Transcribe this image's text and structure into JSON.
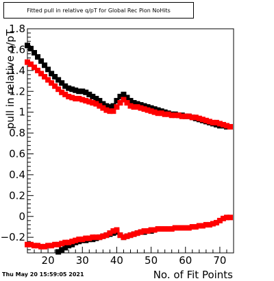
{
  "title": "Fitted pull in relative q/pT for Global Rec Pion NoHits",
  "timestamp": "Thu May 20 15:59:05 2021",
  "chart_data": {
    "type": "scatter",
    "title": "Fitted pull in relative q/pT for Global Rec Pion NoHits",
    "xlabel": "No. of Fit Points",
    "ylabel": "pull in relative q/pT",
    "xlim": [
      14,
      74
    ],
    "ylim": [
      -0.35,
      1.8
    ],
    "x_ticks": [
      20,
      30,
      40,
      50,
      60,
      70
    ],
    "y_ticks": [
      -0.2,
      0,
      0.2,
      0.4,
      0.6,
      0.8,
      1,
      1.2,
      1.4,
      1.6,
      1.8
    ],
    "x_tick_labels": [
      "20",
      "30",
      "40",
      "50",
      "60",
      "70"
    ],
    "y_tick_labels": [
      "−0.2",
      "0",
      "0.2",
      "0.4",
      "0.6",
      "0.8",
      "1",
      "1.2",
      "1.4",
      "1.6",
      "1.8"
    ],
    "grid": false,
    "series": [
      {
        "color": "#000000",
        "x": [
          14,
          15,
          16,
          17,
          18,
          19,
          20,
          21,
          22,
          23,
          24,
          25,
          26,
          27,
          28,
          29,
          30,
          31,
          32,
          33,
          34,
          35,
          36,
          37,
          38,
          39,
          40,
          41,
          42,
          43,
          44,
          45,
          46,
          47,
          48,
          49,
          50,
          51,
          52,
          53,
          54,
          55,
          56,
          57,
          58,
          59,
          60,
          61,
          62,
          63,
          64,
          65,
          66,
          67,
          68,
          69,
          70,
          71,
          72,
          73
        ],
        "y": [
          1.64,
          1.61,
          1.57,
          1.53,
          1.49,
          1.45,
          1.41,
          1.37,
          1.34,
          1.31,
          1.28,
          1.25,
          1.23,
          1.22,
          1.21,
          1.2,
          1.2,
          1.19,
          1.17,
          1.15,
          1.13,
          1.11,
          1.08,
          1.06,
          1.05,
          1.06,
          1.11,
          1.15,
          1.17,
          1.14,
          1.11,
          1.09,
          1.08,
          1.07,
          1.06,
          1.05,
          1.04,
          1.03,
          1.02,
          1.01,
          1.0,
          0.99,
          0.98,
          0.98,
          0.97,
          0.97,
          0.96,
          0.96,
          0.95,
          0.94,
          0.93,
          0.92,
          0.91,
          0.9,
          0.89,
          0.88,
          0.87,
          0.87,
          0.86,
          0.86
        ]
      },
      {
        "color": "#ff0000",
        "x": [
          14,
          15,
          16,
          17,
          18,
          19,
          20,
          21,
          22,
          23,
          24,
          25,
          26,
          27,
          28,
          29,
          30,
          31,
          32,
          33,
          34,
          35,
          36,
          37,
          38,
          39,
          40,
          41,
          42,
          43,
          44,
          45,
          46,
          47,
          48,
          49,
          50,
          51,
          52,
          53,
          54,
          55,
          56,
          57,
          58,
          59,
          60,
          61,
          62,
          63,
          64,
          65,
          66,
          67,
          68,
          69,
          70,
          71,
          72,
          73
        ],
        "y": [
          1.48,
          1.46,
          1.43,
          1.4,
          1.37,
          1.34,
          1.31,
          1.28,
          1.25,
          1.22,
          1.19,
          1.17,
          1.15,
          1.14,
          1.13,
          1.13,
          1.12,
          1.11,
          1.1,
          1.09,
          1.08,
          1.06,
          1.04,
          1.02,
          1.01,
          1.01,
          1.05,
          1.09,
          1.12,
          1.09,
          1.06,
          1.05,
          1.05,
          1.04,
          1.03,
          1.02,
          1.01,
          1.0,
          0.99,
          0.99,
          0.98,
          0.98,
          0.97,
          0.97,
          0.97,
          0.96,
          0.96,
          0.96,
          0.95,
          0.95,
          0.94,
          0.93,
          0.92,
          0.91,
          0.9,
          0.9,
          0.89,
          0.88,
          0.87,
          0.86
        ]
      },
      {
        "color": "#000000",
        "x": [
          23,
          24,
          25,
          26,
          27,
          28,
          29,
          30,
          31,
          32,
          33,
          34,
          35,
          36,
          37,
          38,
          39,
          40,
          41,
          42,
          43,
          44,
          45,
          46,
          47,
          48,
          49,
          50
        ],
        "y": [
          -0.34,
          -0.32,
          -0.3,
          -0.28,
          -0.27,
          -0.25,
          -0.24,
          -0.23,
          -0.23,
          -0.22,
          -0.22,
          -0.21,
          -0.2,
          -0.19,
          -0.18,
          -0.17,
          -0.16,
          -0.15,
          -0.18,
          -0.2,
          -0.19,
          -0.18,
          -0.17,
          -0.16,
          -0.15,
          -0.15,
          -0.14,
          -0.14
        ]
      },
      {
        "color": "#ff0000",
        "x": [
          14,
          15,
          16,
          17,
          18,
          19,
          20,
          21,
          22,
          23,
          24,
          25,
          26,
          27,
          28,
          29,
          30,
          31,
          32,
          33,
          34,
          35,
          36,
          37,
          38,
          39,
          40,
          41,
          42,
          43,
          44,
          45,
          46,
          47,
          48,
          49,
          50,
          51,
          52,
          53,
          54,
          55,
          56,
          57,
          58,
          59,
          60,
          61,
          62,
          63,
          64,
          65,
          66,
          67,
          68,
          69,
          70,
          71,
          72,
          73
        ],
        "y": [
          -0.27,
          -0.27,
          -0.28,
          -0.28,
          -0.29,
          -0.29,
          -0.28,
          -0.28,
          -0.27,
          -0.27,
          -0.26,
          -0.25,
          -0.25,
          -0.24,
          -0.23,
          -0.22,
          -0.22,
          -0.21,
          -0.21,
          -0.2,
          -0.2,
          -0.2,
          -0.19,
          -0.18,
          -0.16,
          -0.14,
          -0.13,
          -0.18,
          -0.2,
          -0.19,
          -0.18,
          -0.17,
          -0.16,
          -0.15,
          -0.14,
          -0.14,
          -0.13,
          -0.13,
          -0.12,
          -0.12,
          -0.12,
          -0.12,
          -0.12,
          -0.11,
          -0.11,
          -0.11,
          -0.11,
          -0.11,
          -0.1,
          -0.1,
          -0.09,
          -0.09,
          -0.08,
          -0.08,
          -0.07,
          -0.06,
          -0.04,
          -0.02,
          -0.01,
          -0.01
        ]
      }
    ]
  }
}
